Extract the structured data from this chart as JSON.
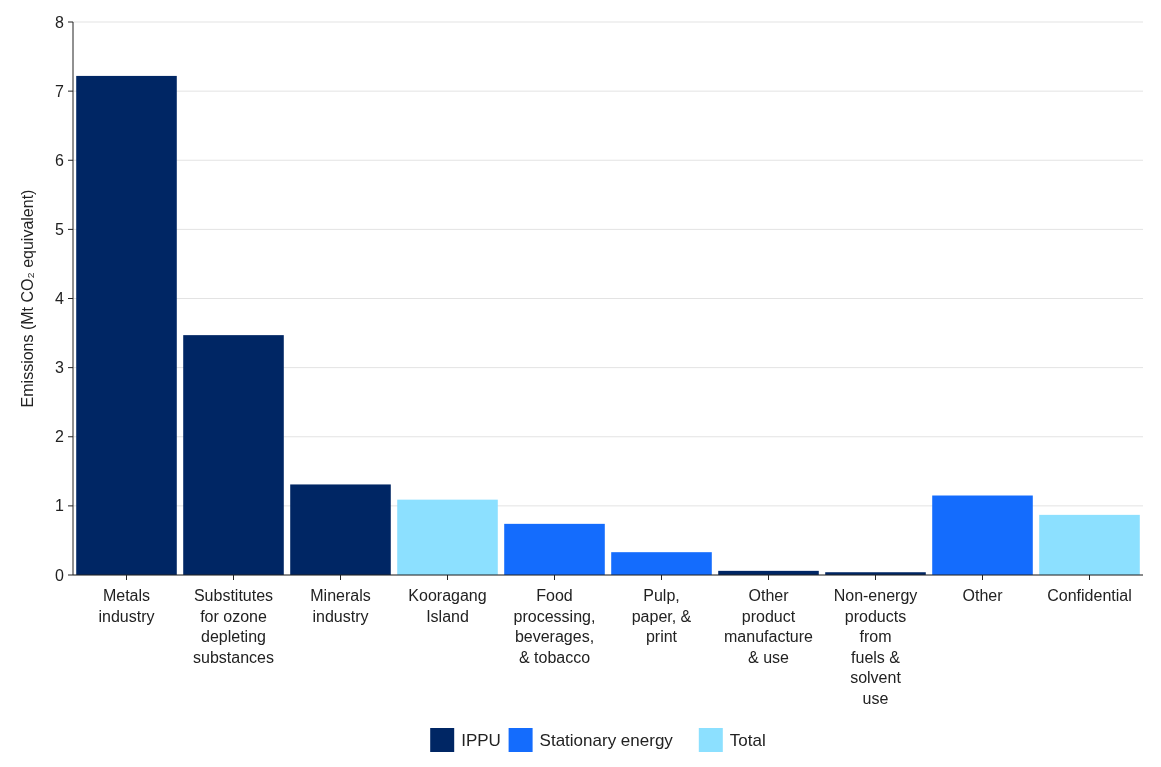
{
  "chart_data": {
    "type": "bar",
    "ylabel": "Emissions (Mt CO₂ equivalent)",
    "categories": [
      "Metals\nindustry",
      "Substitutes\nfor ozone\ndepleting\nsubstances",
      "Minerals\nindustry",
      "Kooragang\nIsland",
      "Food\nprocessing,\nbeverages,\n& tobacco",
      "Pulp,\npaper, &\nprint",
      "Other\nproduct\nmanufacture\n& use",
      "Non-energy\nproducts\nfrom\nfuels &\nsolvent\nuse",
      "Other",
      "Confidential"
    ],
    "series": [
      {
        "name": "IPPU",
        "color": "#002664",
        "values": [
          7.22,
          3.47,
          1.31,
          null,
          null,
          null,
          0.06,
          0.04,
          null,
          null
        ]
      },
      {
        "name": "Stationary energy",
        "color": "#146cfd",
        "values": [
          null,
          null,
          null,
          null,
          0.74,
          0.33,
          null,
          null,
          1.15,
          null
        ]
      },
      {
        "name": "Total",
        "color": "#8ce0ff",
        "values": [
          null,
          null,
          null,
          1.09,
          null,
          null,
          null,
          null,
          null,
          0.87
        ]
      }
    ],
    "ylim": [
      0,
      8
    ],
    "yticks": [
      0,
      1,
      2,
      3,
      4,
      5,
      6,
      7,
      8
    ],
    "grid": "y",
    "legend": "bottom"
  }
}
